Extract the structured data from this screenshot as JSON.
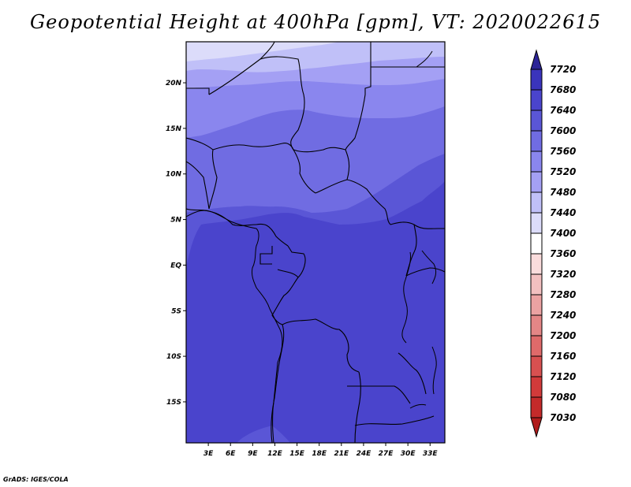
{
  "chart_data": {
    "type": "heatmap",
    "title": "Geopotential Height at 400hPa [gpm], VT: 2020022615",
    "x_ticks": [
      "3E",
      "6E",
      "9E",
      "12E",
      "15E",
      "18E",
      "21E",
      "24E",
      "27E",
      "30E",
      "33E"
    ],
    "x_tick_values": [
      3,
      6,
      9,
      12,
      15,
      18,
      21,
      24,
      27,
      30,
      33
    ],
    "y_ticks": [
      "20N",
      "15N",
      "10N",
      "5N",
      "EQ",
      "5S",
      "10S",
      "15S"
    ],
    "y_tick_values": [
      20,
      15,
      10,
      5,
      0,
      -5,
      -10,
      -15
    ],
    "xlim": [
      0,
      35
    ],
    "ylim": [
      -19.5,
      24.5
    ],
    "colorbar": {
      "levels": [
        7030,
        7080,
        7120,
        7160,
        7200,
        7240,
        7280,
        7320,
        7360,
        7400,
        7440,
        7480,
        7520,
        7560,
        7600,
        7640,
        7680,
        7720
      ],
      "colors": [
        "#b01c1c",
        "#c42a2a",
        "#d23a3a",
        "#d85050",
        "#df6a6a",
        "#e48686",
        "#eba2a2",
        "#f2c0c0",
        "#fadcdc",
        "#ffffff",
        "#dcdcfa",
        "#c0c0f8",
        "#a4a0f4",
        "#8a86ee",
        "#706ce2",
        "#5a56d6",
        "#4a44cc",
        "#3a34bc",
        "#2c2497"
      ],
      "extend": "both"
    },
    "field_bands": [
      {
        "level": 7600,
        "color": "#4a44cc"
      },
      {
        "level": 7560,
        "color": "#5a56d6"
      },
      {
        "level": 7520,
        "color": "#706ce2"
      },
      {
        "level": 7480,
        "color": "#8a86ee"
      },
      {
        "level": 7440,
        "color": "#a4a0f4"
      },
      {
        "level": 7400,
        "color": "#c0c0f8"
      },
      {
        "level": 7360,
        "color": "#dcdcfa"
      }
    ]
  },
  "credit": "GrADS: IGES/COLA"
}
